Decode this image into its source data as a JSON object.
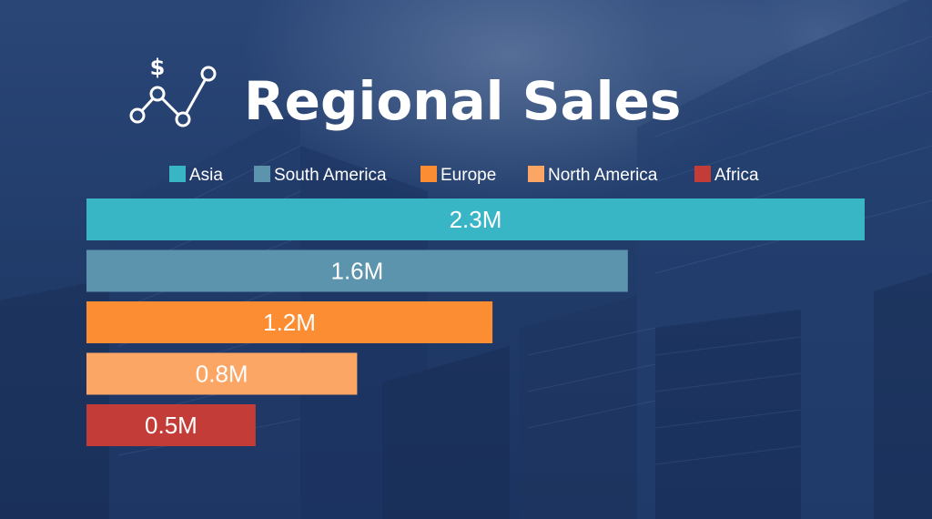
{
  "chart_data": {
    "type": "bar",
    "orientation": "horizontal",
    "title": "Regional Sales",
    "categories": [
      "Asia",
      "South America",
      "Europe",
      "North America",
      "Africa"
    ],
    "values": [
      2.3,
      1.6,
      1.2,
      0.8,
      0.5
    ],
    "value_labels": [
      "2.3M",
      "1.6M",
      "1.2M",
      "0.8M",
      "0.5M"
    ],
    "colors": [
      "#38b6c6",
      "#5d94ad",
      "#fd8d32",
      "#fca665",
      "#c33c37"
    ],
    "legend": "top",
    "grid": false,
    "axes_visible": false,
    "xlim": [
      0,
      2.3
    ]
  },
  "title_icon": "chart-dollar-icon"
}
